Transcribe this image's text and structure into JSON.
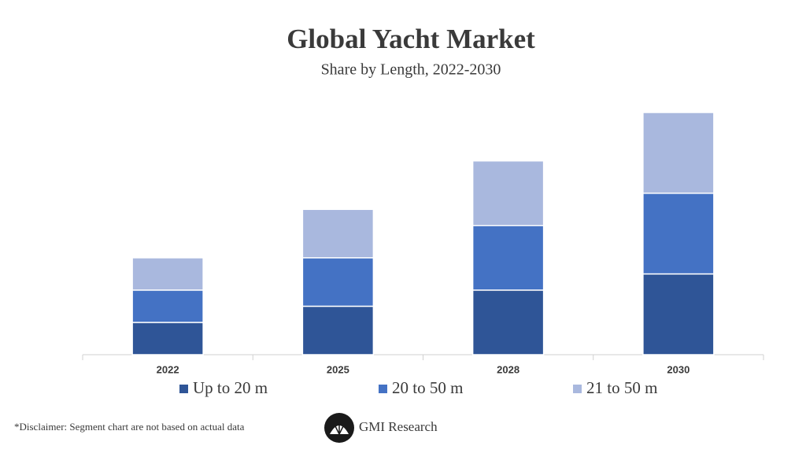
{
  "chart_data": {
    "type": "stacked_bar",
    "title": "Global Yacht Market",
    "subtitle": "Share by Length, 2022-2030",
    "categories": [
      "2022",
      "2025",
      "2028",
      "2030"
    ],
    "series": [
      {
        "name": "Up to 20 m",
        "color": "#2f5597",
        "values": [
          2,
          3,
          4,
          5
        ]
      },
      {
        "name": "20 to 50 m",
        "color": "#4472c4",
        "values": [
          2,
          3,
          4,
          5
        ]
      },
      {
        "name": "21 to 50 m",
        "color": "#a9b8de",
        "values": [
          2,
          3,
          4,
          5
        ]
      }
    ],
    "legend": "bottom"
  },
  "disclaimer": "*Disclaimer:  Segment chart are not based on actual data",
  "brand": "GMI Research"
}
